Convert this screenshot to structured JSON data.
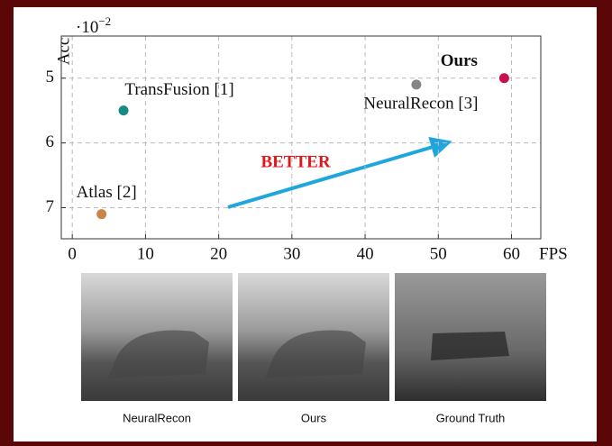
{
  "chart_data": {
    "type": "scatter",
    "y_label": "Acc",
    "x_label": "FPS",
    "y_multiplier": {
      "base": "·10",
      "exponent": "−2"
    },
    "xlim": [
      -1.5,
      64
    ],
    "ylim": [
      4.35,
      7.48
    ],
    "y_inverted": true,
    "xticks": [
      0,
      10,
      20,
      30,
      40,
      50,
      60
    ],
    "yticks": [
      5,
      6,
      7
    ],
    "grid": true,
    "series": [
      {
        "name": "TransFusion [1]",
        "color": "#178a86",
        "x": [
          7
        ],
        "values": [
          5.5
        ]
      },
      {
        "name": "Atlas [2]",
        "color": "#c9844a",
        "x": [
          4
        ],
        "values": [
          7.1
        ]
      },
      {
        "name": "NeuralRecon [3]",
        "color": "#858585",
        "x": [
          47
        ],
        "values": [
          5.1
        ]
      },
      {
        "name": "Ours",
        "color": "#c8114c",
        "x": [
          59
        ],
        "values": [
          5.0
        ]
      }
    ],
    "annotation": "BETTER",
    "images": [
      {
        "caption": "NeuralRecon"
      },
      {
        "caption": "Ours"
      },
      {
        "caption": "Ground Truth"
      }
    ]
  }
}
